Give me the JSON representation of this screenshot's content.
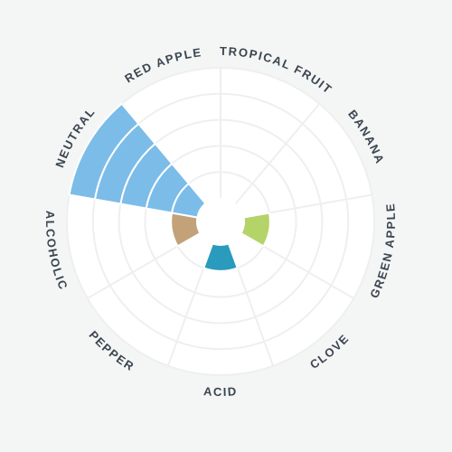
{
  "chart_data": {
    "type": "polar-area",
    "title": "",
    "categories": [
      "TROPICAL FRUIT",
      "BANANA",
      "GREEN APPLE",
      "CLOVE",
      "ACID",
      "PEPPER",
      "ALCOHOLIC",
      "NEUTRAL",
      "RED APPLE"
    ],
    "values": [
      0,
      0,
      1,
      0,
      1,
      0,
      1,
      5,
      0
    ],
    "colors": [
      "#7cbce8",
      "#7cbce8",
      "#b4d46a",
      "#7cbce8",
      "#2a9abd",
      "#7cbce8",
      "#c3a27a",
      "#7cbce8",
      "#7cbce8"
    ],
    "rlim": [
      0,
      5
    ],
    "grid": true,
    "background": "#ffffff",
    "gridColor": "#efefef"
  }
}
